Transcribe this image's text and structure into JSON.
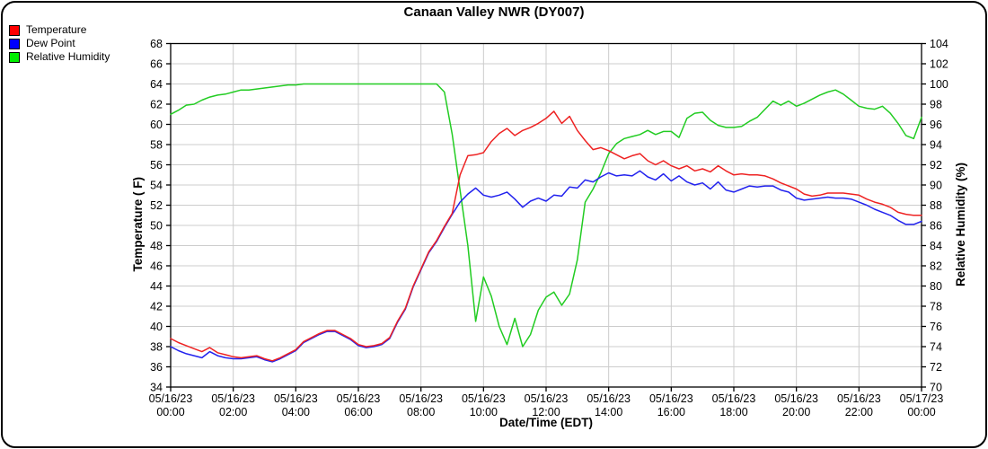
{
  "header": {
    "title": "Canaan Valley NWR (DY007)"
  },
  "legend": {
    "items": [
      {
        "label": "Temperature",
        "color": "#ff0000"
      },
      {
        "label": "Dew Point",
        "color": "#0000ff"
      },
      {
        "label": "Relative Humidity",
        "color": "#00ee00"
      }
    ]
  },
  "chart_data": {
    "type": "line",
    "title": "Canaan Valley NWR (DY007)",
    "x_start_hours": 0,
    "x_step_hours": 0.25,
    "x_axis": {
      "label": "Date/Time (EDT)",
      "tick_every_hours": 2,
      "ticks": [
        {
          "date": "05/16/23",
          "time": "00:00"
        },
        {
          "date": "05/16/23",
          "time": "02:00"
        },
        {
          "date": "05/16/23",
          "time": "04:00"
        },
        {
          "date": "05/16/23",
          "time": "06:00"
        },
        {
          "date": "05/16/23",
          "time": "08:00"
        },
        {
          "date": "05/16/23",
          "time": "10:00"
        },
        {
          "date": "05/16/23",
          "time": "12:00"
        },
        {
          "date": "05/16/23",
          "time": "14:00"
        },
        {
          "date": "05/16/23",
          "time": "16:00"
        },
        {
          "date": "05/16/23",
          "time": "18:00"
        },
        {
          "date": "05/16/23",
          "time": "20:00"
        },
        {
          "date": "05/16/23",
          "time": "22:00"
        },
        {
          "date": "05/17/23",
          "time": "00:00"
        }
      ]
    },
    "y_left": {
      "label": "Temperature ( F)",
      "min": 34,
      "max": 68,
      "step": 2
    },
    "y_right": {
      "label": "Relative Humidity (%)",
      "min": 70,
      "max": 104,
      "step": 2
    },
    "grid": true,
    "colors": {
      "grid": "#cccccc",
      "axis": "#000000",
      "background": "#ffffff"
    },
    "series": [
      {
        "name": "Temperature",
        "axis": "left",
        "line_color": "#ee2222",
        "swatch_color": "#ff0000",
        "values": [
          38.8,
          38.4,
          38.1,
          37.8,
          37.5,
          37.9,
          37.4,
          37.2,
          37.0,
          36.9,
          37.0,
          37.1,
          36.8,
          36.6,
          36.9,
          37.3,
          37.7,
          38.5,
          38.9,
          39.3,
          39.6,
          39.6,
          39.2,
          38.8,
          38.2,
          38.0,
          38.1,
          38.3,
          38.9,
          40.5,
          41.8,
          44.0,
          45.7,
          47.4,
          48.5,
          49.9,
          51.2,
          55.0,
          56.9,
          57.0,
          57.2,
          58.3,
          59.1,
          59.6,
          58.9,
          59.4,
          59.7,
          60.1,
          60.6,
          61.3,
          60.1,
          60.8,
          59.4,
          58.4,
          57.5,
          57.7,
          57.4,
          57.0,
          56.6,
          56.9,
          57.1,
          56.4,
          56.0,
          56.4,
          55.9,
          55.6,
          55.9,
          55.4,
          55.6,
          55.3,
          55.9,
          55.4,
          55.0,
          55.1,
          55.0,
          55.0,
          54.9,
          54.6,
          54.2,
          53.9,
          53.6,
          53.1,
          52.9,
          53.0,
          53.2,
          53.2,
          53.2,
          53.1,
          53.0,
          52.6,
          52.3,
          52.1,
          51.8,
          51.3,
          51.1,
          51.0,
          51.0
        ]
      },
      {
        "name": "Dew Point",
        "axis": "left",
        "line_color": "#2222ee",
        "swatch_color": "#0000ff",
        "values": [
          38.0,
          37.6,
          37.3,
          37.1,
          36.9,
          37.5,
          37.1,
          36.9,
          36.8,
          36.8,
          36.9,
          37.0,
          36.7,
          36.5,
          36.8,
          37.2,
          37.6,
          38.4,
          38.8,
          39.2,
          39.5,
          39.5,
          39.1,
          38.7,
          38.1,
          37.9,
          38.0,
          38.2,
          38.8,
          40.4,
          41.7,
          43.9,
          45.6,
          47.3,
          48.4,
          49.8,
          51.1,
          52.3,
          53.1,
          53.7,
          53.0,
          52.8,
          53.0,
          53.3,
          52.6,
          51.8,
          52.4,
          52.7,
          52.4,
          53.0,
          52.9,
          53.8,
          53.7,
          54.5,
          54.3,
          54.8,
          55.2,
          54.9,
          55.0,
          54.9,
          55.4,
          54.8,
          54.5,
          55.1,
          54.4,
          54.9,
          54.3,
          54.0,
          54.2,
          53.6,
          54.3,
          53.5,
          53.3,
          53.6,
          53.9,
          53.8,
          53.9,
          53.9,
          53.5,
          53.3,
          52.7,
          52.5,
          52.6,
          52.7,
          52.8,
          52.7,
          52.7,
          52.6,
          52.3,
          52.0,
          51.6,
          51.3,
          51.0,
          50.5,
          50.1,
          50.1,
          50.4
        ]
      },
      {
        "name": "Relative Humidity",
        "axis": "right",
        "line_color": "#22cc22",
        "swatch_color": "#00ee00",
        "values": [
          97.0,
          97.4,
          97.9,
          98.0,
          98.4,
          98.7,
          98.9,
          99.0,
          99.2,
          99.4,
          99.4,
          99.5,
          99.6,
          99.7,
          99.8,
          99.9,
          99.9,
          100,
          100,
          100,
          100,
          100,
          100,
          100,
          100,
          100,
          100,
          100,
          100,
          100,
          100,
          100,
          100,
          100,
          100,
          99.2,
          95.0,
          89.5,
          84.0,
          76.5,
          80.9,
          79.0,
          76.0,
          74.2,
          76.8,
          74.0,
          75.2,
          77.6,
          78.9,
          79.4,
          78.1,
          79.2,
          82.6,
          88.3,
          89.6,
          91.2,
          93.1,
          94.1,
          94.6,
          94.8,
          95.0,
          95.4,
          95.0,
          95.3,
          95.3,
          94.7,
          96.6,
          97.1,
          97.2,
          96.4,
          95.9,
          95.7,
          95.7,
          95.8,
          96.3,
          96.7,
          97.5,
          98.3,
          97.9,
          98.3,
          97.8,
          98.1,
          98.5,
          98.9,
          99.2,
          99.4,
          99.0,
          98.4,
          97.8,
          97.6,
          97.5,
          97.8,
          97.1,
          96.1,
          94.9,
          94.6,
          96.7
        ]
      }
    ]
  }
}
